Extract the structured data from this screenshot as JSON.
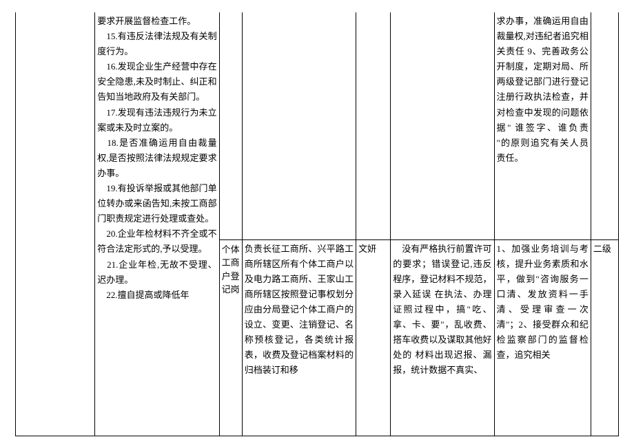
{
  "table": {
    "row1": {
      "c1": "",
      "c2": "要求开展监督检查工作。\n　15.有违反法律法规及有关制度行为。\n　16.发现企业生产经营中存在安全隐患,未及时制止、纠正和告知当地政府及有关部门。\n　17.发现有违法违规行为未立案或未及时立案的。\n　18.是否准确运用自由裁量权,是否按照法律法规规定要求办事。\n　19.有投诉举报或其他部门单位转办或来函告知,未按工商部门职责规定进行处理或查处。\n　20.企业年检材料不齐全或不符合法定形式的,予以受理。\n　21.企业年检,无故不受理、迟办理。\n　22.擅自提高或降低年",
      "c3": "",
      "c4": "",
      "c5": "",
      "c6": "",
      "c7": "求办事，准确运用自由裁量权,对违纪者追究相关责任   9、完善政务公开制度，定期对局、所两级登记部门进行登记注册行政执法检查，并对检查中发现的问题依据\" 谁签字、谁负责 \"的原则追究有关人员责任。",
      "c8": ""
    },
    "row2": {
      "c3": "个体工商户登记岗",
      "c4": "负责长征工商所、兴平路工商所辖区所有个体工商户以及电力路工商所、王家山工商所辖区按照登记事权划分应由分局登记个体工商户的设立、变更、注销登记、名称预核登记，各类统计报表，收费及登记档案材料的归档装订和移",
      "c5": "文妍",
      "c6": "　没有严格执行前置许可的要求；错误登记,违反程序，登记材料不规范，录入延误 在执法、办理证照过程中，搞\"吃、拿、卡、要\"，乱收费、搭车收费以及谋取其他好处的 材料出现迟报、漏报，统计数据不真实、",
      "c7": "1、加强业务培训与考核，提升业务素质和水平，做到\"咨询服务一口清、发放资料一手清、受理审查一次清\"；2、接受群众和纪检监察部门的监督检查，追究相关",
      "c8": "二级"
    }
  },
  "layout": {
    "row1_height": 330,
    "row2_height": 285
  }
}
